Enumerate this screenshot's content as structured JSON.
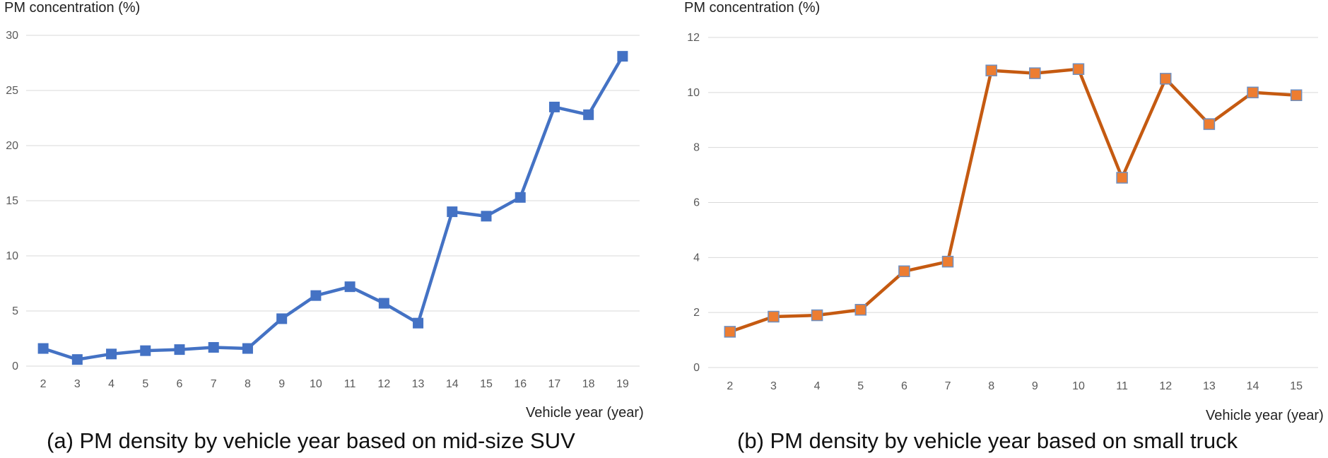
{
  "chart_data": [
    {
      "type": "line",
      "title": "",
      "ylabel": "PM concentration (%)",
      "xlabel": "Vehicle year (year)",
      "caption": "(a) PM density by vehicle year based on mid-size SUV",
      "ylim": [
        0,
        30
      ],
      "yticks": [
        "0",
        "5",
        "10",
        "15",
        "20",
        "25",
        "30"
      ],
      "grid": true,
      "categories": [
        "2",
        "3",
        "4",
        "5",
        "6",
        "7",
        "8",
        "9",
        "10",
        "11",
        "12",
        "13",
        "14",
        "15",
        "16",
        "17",
        "18",
        "19"
      ],
      "series": [
        {
          "values": [
            1.6,
            0.6,
            1.1,
            1.4,
            1.5,
            1.7,
            1.6,
            4.3,
            6.4,
            7.2,
            5.7,
            3.9,
            14.0,
            13.6,
            15.3,
            23.5,
            22.8,
            28.1
          ],
          "color": "#4472c4",
          "marker": "square"
        }
      ]
    },
    {
      "type": "line",
      "title": "",
      "ylabel": "PM concentration (%)",
      "xlabel": "Vehicle year (year)",
      "caption": "(b) PM density by vehicle year based on small truck",
      "ylim": [
        0,
        12
      ],
      "yticks": [
        "0",
        "2",
        "4",
        "6",
        "8",
        "10",
        "12"
      ],
      "grid": true,
      "categories": [
        "2",
        "3",
        "4",
        "5",
        "6",
        "7",
        "8",
        "9",
        "10",
        "11",
        "12",
        "13",
        "14",
        "15"
      ],
      "series": [
        {
          "values": [
            1.3,
            1.85,
            1.9,
            2.1,
            3.5,
            3.85,
            10.8,
            10.7,
            10.85,
            6.9,
            10.5,
            8.85,
            10.0,
            9.9
          ],
          "color": "#c55a11",
          "marker_fill": "#ed7d31",
          "marker_stroke": "#6f8fbf",
          "marker": "square"
        }
      ]
    }
  ]
}
